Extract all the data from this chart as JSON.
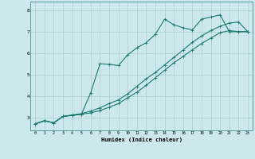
{
  "xlabel": "Humidex (Indice chaleur)",
  "bg_color": "#cce8ec",
  "grid_color": "#aacccc",
  "line_color": "#1a7a6e",
  "xlim": [
    -0.5,
    23.5
  ],
  "ylim": [
    2.4,
    8.4
  ],
  "xticks": [
    0,
    1,
    2,
    3,
    4,
    5,
    6,
    7,
    8,
    9,
    10,
    11,
    12,
    13,
    14,
    15,
    16,
    17,
    18,
    19,
    20,
    21,
    22,
    23
  ],
  "yticks": [
    3,
    4,
    5,
    6,
    7,
    8
  ],
  "line1_x": [
    0,
    1,
    2,
    3,
    4,
    5,
    6,
    7,
    8,
    9,
    10,
    11,
    12,
    13,
    14,
    15,
    16,
    17,
    18,
    19,
    20,
    21,
    22,
    23
  ],
  "line1_y": [
    2.7,
    2.85,
    2.75,
    3.05,
    3.1,
    3.15,
    3.22,
    3.32,
    3.48,
    3.65,
    3.92,
    4.18,
    4.5,
    4.85,
    5.2,
    5.55,
    5.85,
    6.15,
    6.45,
    6.7,
    6.95,
    7.05,
    7.0,
    7.0
  ],
  "line2_x": [
    0,
    1,
    2,
    3,
    4,
    5,
    6,
    7,
    8,
    9,
    10,
    11,
    12,
    13,
    14,
    15,
    16,
    17,
    18,
    19,
    20,
    21,
    22,
    23
  ],
  "line2_y": [
    2.7,
    2.85,
    2.75,
    3.05,
    3.12,
    3.18,
    3.3,
    3.45,
    3.65,
    3.82,
    4.1,
    4.45,
    4.8,
    5.1,
    5.45,
    5.8,
    6.15,
    6.5,
    6.8,
    7.05,
    7.25,
    7.4,
    7.45,
    7.0
  ],
  "line3_x": [
    0,
    1,
    2,
    3,
    4,
    5,
    6,
    7,
    8,
    9,
    10,
    11,
    12,
    13,
    14,
    15,
    16,
    17,
    18,
    19,
    20,
    21,
    22,
    23
  ],
  "line3_y": [
    2.7,
    2.85,
    2.75,
    3.05,
    3.1,
    3.15,
    4.15,
    5.5,
    5.48,
    5.42,
    5.92,
    6.25,
    6.48,
    6.88,
    7.58,
    7.32,
    7.18,
    7.08,
    7.58,
    7.68,
    7.78,
    7.0,
    7.0,
    7.0
  ]
}
